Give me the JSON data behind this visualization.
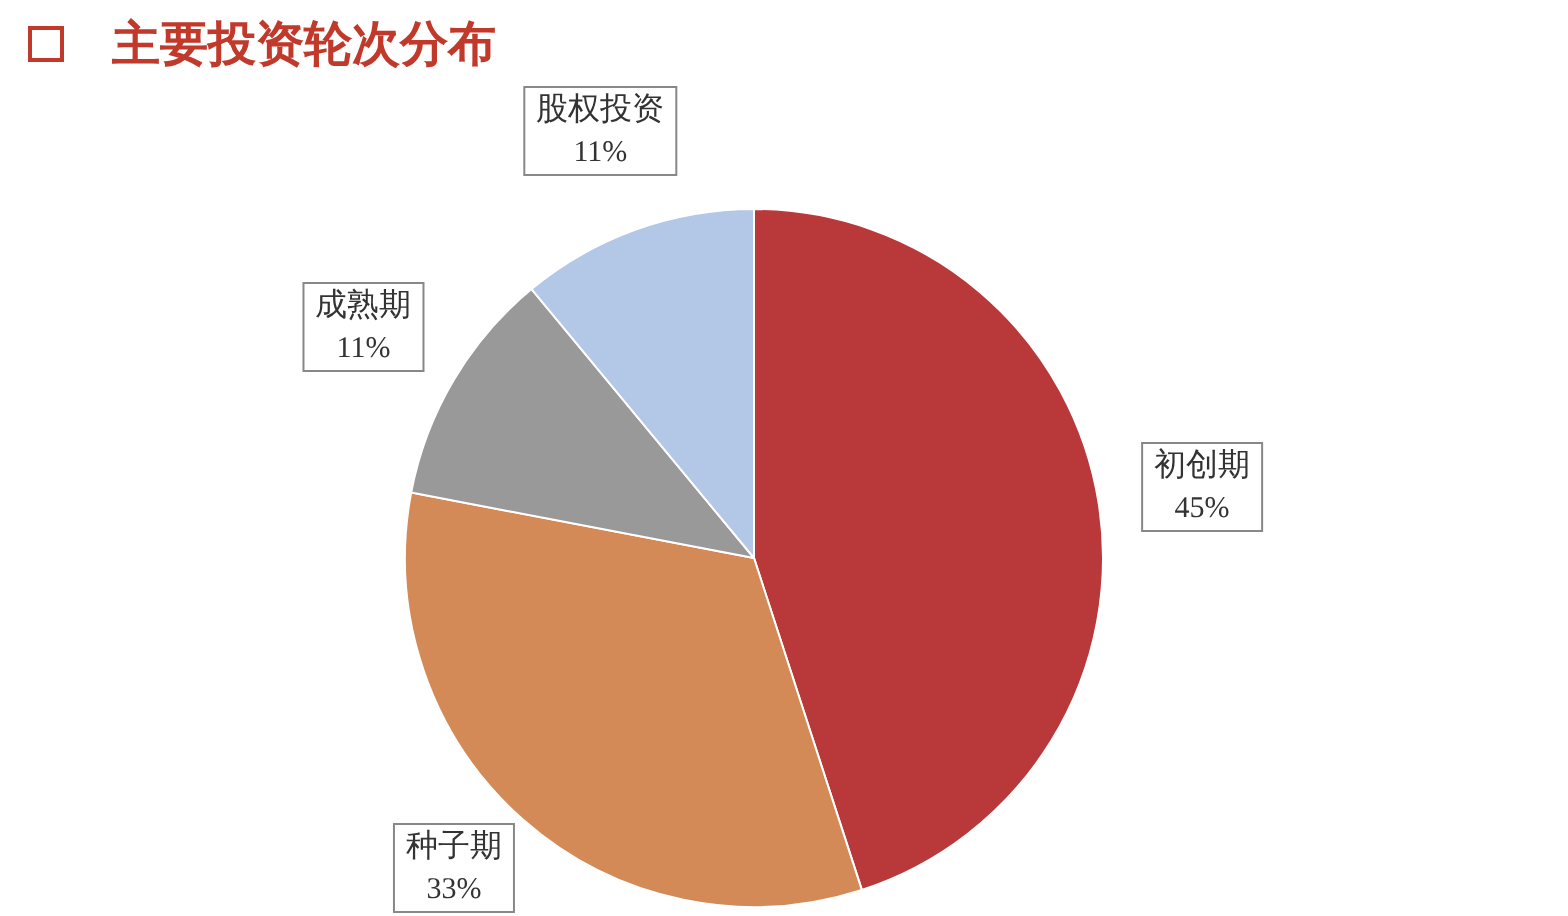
{
  "chart_data": {
    "type": "pie",
    "title": "主要投资轮次分布",
    "categories": [
      "初创期",
      "种子期",
      "成熟期",
      "股权投资"
    ],
    "values": [
      45,
      33,
      11,
      11
    ],
    "colors": [
      "#b9383a",
      "#d48a57",
      "#999999",
      "#b3c7e6"
    ],
    "value_labels": [
      "45%",
      "33%",
      "11%",
      "11%"
    ]
  }
}
